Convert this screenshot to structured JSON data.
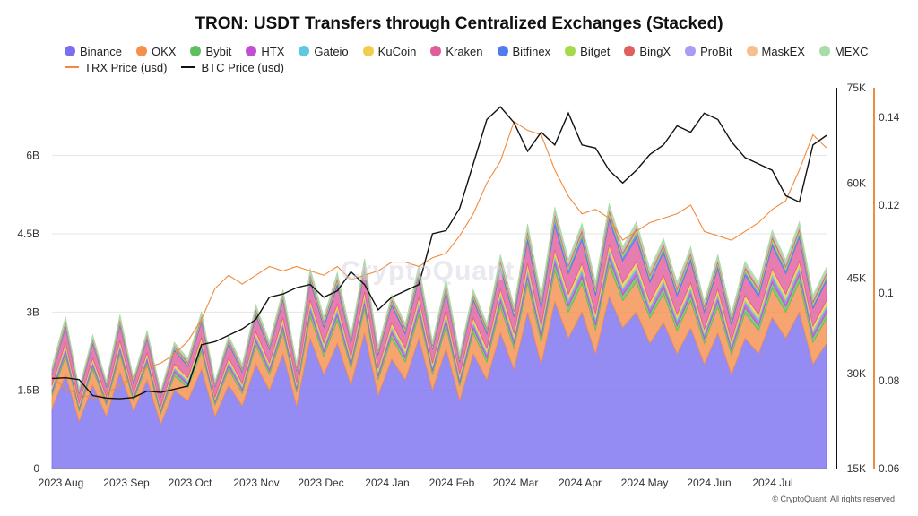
{
  "title": "TRON: USDT Transfers through Centralized Exchanges (Stacked)",
  "watermark": "CryptoQuant",
  "copyright": "© CryptoQuant. All rights reserved",
  "chart_data": {
    "type": "area",
    "stacked": true,
    "x_ticks": [
      "2023 Aug",
      "2023 Sep",
      "2023 Oct",
      "2023 Nov",
      "2023 Dec",
      "2024 Jan",
      "2024 Feb",
      "2024 Mar",
      "2024 Apr",
      "2024 May",
      "2024 Jun",
      "2024 Jul"
    ],
    "y_left": {
      "ticks": [
        "0",
        "1.5B",
        "3B",
        "4.5B",
        "6B"
      ],
      "range": [
        0,
        7.3
      ]
    },
    "y_btc": {
      "ticks": [
        "15K",
        "30K",
        "45K",
        "60K",
        "75K"
      ],
      "range": [
        15000,
        75000
      ]
    },
    "y_trx": {
      "ticks": [
        "0.06",
        "0.08",
        "0.1",
        "0.12",
        "0.14"
      ],
      "range": [
        0.06,
        0.1467
      ]
    },
    "grid": true,
    "legend_position": "top",
    "series": [
      {
        "name": "Binance",
        "color": "#7a6ff0",
        "values": [
          1.15,
          1.8,
          0.9,
          1.6,
          1.0,
          1.85,
          1.1,
          1.7,
          0.85,
          1.5,
          1.3,
          1.9,
          1.0,
          1.6,
          1.2,
          2.0,
          1.5,
          2.2,
          1.2,
          2.5,
          1.8,
          2.4,
          1.6,
          2.6,
          1.4,
          2.1,
          1.7,
          2.5,
          1.5,
          2.3,
          1.3,
          2.2,
          1.7,
          2.6,
          1.9,
          3.0,
          2.0,
          3.2,
          2.5,
          3.0,
          2.2,
          3.3,
          2.7,
          3.0,
          2.4,
          2.8,
          2.2,
          2.7,
          2.0,
          2.6,
          1.8,
          2.5,
          2.2,
          2.9,
          2.5,
          3.0,
          2.0,
          2.4
        ]
      },
      {
        "name": "OKX",
        "color": "#f48f4c",
        "values": [
          0.25,
          0.35,
          0.2,
          0.3,
          0.22,
          0.34,
          0.2,
          0.3,
          0.2,
          0.28,
          0.25,
          0.35,
          0.22,
          0.3,
          0.24,
          0.36,
          0.3,
          0.4,
          0.26,
          0.42,
          0.35,
          0.44,
          0.32,
          0.46,
          0.3,
          0.4,
          0.34,
          0.45,
          0.3,
          0.42,
          0.28,
          0.4,
          0.34,
          0.5,
          0.4,
          0.55,
          0.42,
          0.6,
          0.5,
          0.55,
          0.45,
          0.6,
          0.52,
          0.58,
          0.48,
          0.55,
          0.44,
          0.52,
          0.4,
          0.5,
          0.38,
          0.48,
          0.44,
          0.55,
          0.5,
          0.58,
          0.42,
          0.48
        ]
      },
      {
        "name": "Bybit",
        "color": "#5fbf5f",
        "values": [
          0.06,
          0.08,
          0.05,
          0.07,
          0.05,
          0.08,
          0.05,
          0.07,
          0.05,
          0.07,
          0.06,
          0.08,
          0.05,
          0.07,
          0.06,
          0.08,
          0.07,
          0.09,
          0.06,
          0.1,
          0.08,
          0.1,
          0.07,
          0.1,
          0.07,
          0.09,
          0.08,
          0.1,
          0.07,
          0.1,
          0.07,
          0.09,
          0.08,
          0.11,
          0.09,
          0.12,
          0.1,
          0.13,
          0.11,
          0.12,
          0.1,
          0.13,
          0.11,
          0.12,
          0.1,
          0.12,
          0.1,
          0.11,
          0.09,
          0.11,
          0.09,
          0.11,
          0.1,
          0.12,
          0.11,
          0.13,
          0.1,
          0.11
        ]
      },
      {
        "name": "HTX",
        "color": "#c04fd6",
        "values": [
          0.05,
          0.07,
          0.04,
          0.06,
          0.04,
          0.07,
          0.04,
          0.06,
          0.04,
          0.06,
          0.05,
          0.07,
          0.04,
          0.06,
          0.05,
          0.07,
          0.06,
          0.08,
          0.05,
          0.08,
          0.07,
          0.08,
          0.06,
          0.09,
          0.06,
          0.08,
          0.07,
          0.09,
          0.06,
          0.08,
          0.06,
          0.08,
          0.07,
          0.09,
          0.08,
          0.1,
          0.08,
          0.1,
          0.09,
          0.1,
          0.08,
          0.1,
          0.09,
          0.1,
          0.08,
          0.09,
          0.08,
          0.09,
          0.07,
          0.09,
          0.07,
          0.09,
          0.08,
          0.1,
          0.09,
          0.1,
          0.08,
          0.09
        ]
      },
      {
        "name": "Gateio",
        "color": "#5ec8e0",
        "values": [
          0.03,
          0.04,
          0.02,
          0.03,
          0.02,
          0.04,
          0.02,
          0.03,
          0.02,
          0.03,
          0.03,
          0.04,
          0.02,
          0.03,
          0.03,
          0.04,
          0.03,
          0.04,
          0.03,
          0.05,
          0.04,
          0.05,
          0.03,
          0.05,
          0.03,
          0.04,
          0.04,
          0.05,
          0.03,
          0.05,
          0.03,
          0.04,
          0.04,
          0.05,
          0.04,
          0.06,
          0.05,
          0.06,
          0.05,
          0.06,
          0.05,
          0.06,
          0.05,
          0.06,
          0.05,
          0.05,
          0.05,
          0.05,
          0.04,
          0.05,
          0.04,
          0.05,
          0.05,
          0.06,
          0.05,
          0.06,
          0.05,
          0.05
        ]
      },
      {
        "name": "KuCoin",
        "color": "#f2cc4a",
        "values": [
          0.05,
          0.07,
          0.04,
          0.06,
          0.04,
          0.07,
          0.04,
          0.06,
          0.04,
          0.06,
          0.05,
          0.07,
          0.04,
          0.06,
          0.05,
          0.07,
          0.06,
          0.08,
          0.05,
          0.08,
          0.07,
          0.08,
          0.06,
          0.09,
          0.06,
          0.08,
          0.07,
          0.09,
          0.06,
          0.08,
          0.06,
          0.08,
          0.07,
          0.09,
          0.08,
          0.1,
          0.08,
          0.1,
          0.09,
          0.1,
          0.08,
          0.1,
          0.09,
          0.1,
          0.08,
          0.09,
          0.08,
          0.09,
          0.07,
          0.09,
          0.07,
          0.09,
          0.08,
          0.1,
          0.09,
          0.1,
          0.08,
          0.09
        ]
      },
      {
        "name": "Kraken",
        "color": "#e05c9a",
        "values": [
          0.22,
          0.3,
          0.18,
          0.28,
          0.2,
          0.3,
          0.18,
          0.27,
          0.18,
          0.26,
          0.22,
          0.3,
          0.2,
          0.27,
          0.22,
          0.32,
          0.26,
          0.34,
          0.22,
          0.36,
          0.3,
          0.36,
          0.27,
          0.38,
          0.26,
          0.34,
          0.28,
          0.37,
          0.26,
          0.35,
          0.24,
          0.34,
          0.28,
          0.4,
          0.32,
          0.44,
          0.34,
          0.48,
          0.4,
          0.45,
          0.36,
          0.48,
          0.42,
          0.46,
          0.38,
          0.44,
          0.36,
          0.42,
          0.33,
          0.4,
          0.31,
          0.39,
          0.35,
          0.44,
          0.4,
          0.46,
          0.34,
          0.38
        ]
      },
      {
        "name": "Bitfinex",
        "color": "#4f7df0",
        "values": [
          0.03,
          0.05,
          0.03,
          0.04,
          0.03,
          0.05,
          0.03,
          0.04,
          0.03,
          0.04,
          0.03,
          0.05,
          0.03,
          0.04,
          0.03,
          0.05,
          0.04,
          0.05,
          0.03,
          0.06,
          0.05,
          0.06,
          0.04,
          0.06,
          0.04,
          0.05,
          0.05,
          0.06,
          0.04,
          0.06,
          0.04,
          0.05,
          0.05,
          0.07,
          0.06,
          0.1,
          0.07,
          0.12,
          0.08,
          0.1,
          0.07,
          0.09,
          0.08,
          0.09,
          0.07,
          0.08,
          0.07,
          0.08,
          0.06,
          0.07,
          0.06,
          0.07,
          0.07,
          0.08,
          0.07,
          0.08,
          0.06,
          0.07
        ]
      },
      {
        "name": "Bitget",
        "color": "#a6d94c",
        "values": [
          0.03,
          0.04,
          0.02,
          0.03,
          0.02,
          0.04,
          0.02,
          0.03,
          0.02,
          0.03,
          0.03,
          0.04,
          0.02,
          0.03,
          0.03,
          0.04,
          0.03,
          0.04,
          0.03,
          0.05,
          0.04,
          0.05,
          0.03,
          0.05,
          0.03,
          0.04,
          0.04,
          0.05,
          0.03,
          0.05,
          0.03,
          0.04,
          0.04,
          0.05,
          0.04,
          0.06,
          0.05,
          0.06,
          0.05,
          0.06,
          0.05,
          0.06,
          0.05,
          0.06,
          0.05,
          0.05,
          0.05,
          0.05,
          0.04,
          0.05,
          0.04,
          0.05,
          0.05,
          0.06,
          0.05,
          0.06,
          0.05,
          0.05
        ]
      },
      {
        "name": "BingX",
        "color": "#e06060",
        "values": [
          0.02,
          0.03,
          0.02,
          0.02,
          0.02,
          0.03,
          0.02,
          0.02,
          0.02,
          0.02,
          0.02,
          0.03,
          0.02,
          0.02,
          0.02,
          0.03,
          0.02,
          0.03,
          0.02,
          0.03,
          0.03,
          0.03,
          0.02,
          0.03,
          0.02,
          0.03,
          0.03,
          0.03,
          0.02,
          0.03,
          0.02,
          0.03,
          0.03,
          0.03,
          0.03,
          0.04,
          0.03,
          0.04,
          0.03,
          0.04,
          0.03,
          0.04,
          0.03,
          0.04,
          0.03,
          0.03,
          0.03,
          0.03,
          0.03,
          0.03,
          0.03,
          0.03,
          0.03,
          0.04,
          0.03,
          0.04,
          0.03,
          0.03
        ]
      },
      {
        "name": "ProBit",
        "color": "#a99cf5",
        "values": [
          0.02,
          0.02,
          0.01,
          0.02,
          0.01,
          0.02,
          0.01,
          0.02,
          0.01,
          0.02,
          0.02,
          0.02,
          0.01,
          0.02,
          0.02,
          0.02,
          0.02,
          0.02,
          0.02,
          0.03,
          0.02,
          0.03,
          0.02,
          0.03,
          0.02,
          0.02,
          0.02,
          0.03,
          0.02,
          0.03,
          0.02,
          0.02,
          0.02,
          0.03,
          0.02,
          0.03,
          0.03,
          0.03,
          0.03,
          0.03,
          0.03,
          0.03,
          0.03,
          0.03,
          0.03,
          0.03,
          0.03,
          0.03,
          0.02,
          0.03,
          0.02,
          0.03,
          0.03,
          0.03,
          0.03,
          0.03,
          0.03,
          0.03
        ]
      },
      {
        "name": "MaskEX",
        "color": "#f5bf8f",
        "values": [
          0.02,
          0.02,
          0.01,
          0.02,
          0.01,
          0.02,
          0.01,
          0.02,
          0.01,
          0.02,
          0.02,
          0.02,
          0.01,
          0.02,
          0.02,
          0.02,
          0.02,
          0.02,
          0.02,
          0.03,
          0.02,
          0.03,
          0.02,
          0.03,
          0.02,
          0.02,
          0.02,
          0.03,
          0.02,
          0.03,
          0.02,
          0.02,
          0.02,
          0.03,
          0.02,
          0.03,
          0.03,
          0.03,
          0.03,
          0.03,
          0.03,
          0.03,
          0.03,
          0.03,
          0.03,
          0.03,
          0.03,
          0.03,
          0.02,
          0.03,
          0.02,
          0.03,
          0.03,
          0.03,
          0.03,
          0.03,
          0.03,
          0.03
        ]
      },
      {
        "name": "MEXC",
        "color": "#a8dca8",
        "values": [
          0.03,
          0.04,
          0.02,
          0.03,
          0.02,
          0.04,
          0.02,
          0.03,
          0.02,
          0.03,
          0.03,
          0.04,
          0.02,
          0.03,
          0.03,
          0.04,
          0.03,
          0.04,
          0.03,
          0.05,
          0.04,
          0.05,
          0.03,
          0.05,
          0.03,
          0.04,
          0.04,
          0.05,
          0.03,
          0.05,
          0.03,
          0.04,
          0.04,
          0.05,
          0.04,
          0.06,
          0.05,
          0.06,
          0.05,
          0.06,
          0.05,
          0.06,
          0.05,
          0.06,
          0.05,
          0.05,
          0.05,
          0.05,
          0.04,
          0.05,
          0.04,
          0.05,
          0.05,
          0.06,
          0.05,
          0.06,
          0.05,
          0.05
        ]
      }
    ],
    "trx_price": {
      "name": "TRX Price (usd)",
      "color": "#f08a3c",
      "values": [
        0.081,
        0.078,
        0.077,
        0.076,
        0.077,
        0.079,
        0.081,
        0.083,
        0.084,
        0.086,
        0.089,
        0.094,
        0.101,
        0.104,
        0.102,
        0.104,
        0.106,
        0.105,
        0.106,
        0.105,
        0.104,
        0.106,
        0.103,
        0.104,
        0.105,
        0.107,
        0.107,
        0.106,
        0.108,
        0.109,
        0.113,
        0.118,
        0.125,
        0.13,
        0.139,
        0.137,
        0.136,
        0.128,
        0.122,
        0.118,
        0.119,
        0.117,
        0.112,
        0.114,
        0.116,
        0.117,
        0.118,
        0.12,
        0.114,
        0.113,
        0.112,
        0.114,
        0.116,
        0.119,
        0.121,
        0.128,
        0.136,
        0.133
      ]
    },
    "btc_price": {
      "name": "BTC Price (usd)",
      "color": "#111111",
      "values": [
        29200,
        29300,
        29000,
        26500,
        26100,
        26000,
        26200,
        27200,
        27000,
        27500,
        28000,
        34500,
        35000,
        36000,
        37000,
        38500,
        42000,
        42500,
        43500,
        44000,
        42000,
        43000,
        46000,
        44000,
        40000,
        42000,
        43000,
        44000,
        52000,
        52500,
        56000,
        63000,
        70000,
        72000,
        69500,
        65000,
        68000,
        66000,
        71000,
        66000,
        65500,
        62000,
        60000,
        62000,
        64500,
        66000,
        69000,
        68000,
        71000,
        70000,
        66500,
        64000,
        63000,
        62000,
        58000,
        57000,
        66000,
        67500
      ]
    }
  }
}
